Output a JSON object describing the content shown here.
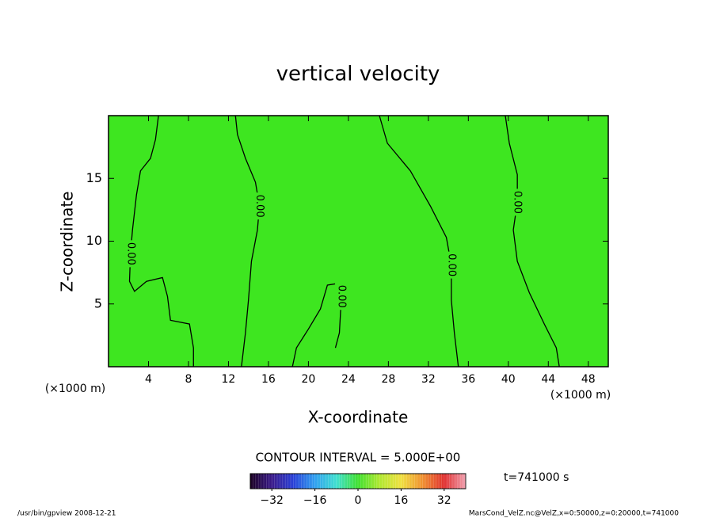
{
  "chart_data": {
    "type": "contour",
    "title": "vertical velocity",
    "x_label": "X-coordinate",
    "y_label": "Z-coordinate",
    "x_unit_label": "(×1000 m)",
    "xlim": [
      0,
      50
    ],
    "xticks": [
      4,
      8,
      12,
      16,
      20,
      24,
      28,
      32,
      36,
      40,
      44,
      48
    ],
    "ylim": [
      0,
      20
    ],
    "yticks": [
      5,
      10,
      15
    ],
    "field_color": "#3ee620",
    "contour_color": "#000000",
    "contours": [
      {
        "level": 0,
        "label": "0.00",
        "x": [
          5.0,
          4.7,
          4.2,
          3.2,
          2.8,
          2.4,
          2.2,
          2.1,
          2.6,
          3.8,
          5.4,
          5.9,
          6.2,
          8.1,
          8.5,
          8.5
        ],
        "y": [
          20.0,
          18.1,
          16.6,
          15.6,
          13.7,
          10.9,
          9.0,
          6.8,
          6.0,
          6.8,
          7.1,
          5.6,
          3.7,
          3.4,
          1.5,
          0
        ]
      },
      {
        "level": 0,
        "label": "0.00",
        "x": [
          12.7,
          12.9,
          13.7,
          14.7,
          15.1,
          14.9,
          14.3,
          14.0,
          13.7,
          13.3
        ],
        "y": [
          20.0,
          18.5,
          16.6,
          14.7,
          12.8,
          10.9,
          8.4,
          5.3,
          2.7,
          0
        ]
      },
      {
        "level": 0,
        "label": "0.00",
        "x": [
          27.1,
          27.9,
          30.2,
          32.2,
          33.8,
          34.3,
          34.3,
          34.6,
          35.0
        ],
        "y": [
          20.0,
          17.8,
          15.6,
          12.8,
          10.3,
          8.1,
          5.3,
          2.7,
          0
        ]
      },
      {
        "level": 0,
        "label": "0.00",
        "x": [
          39.7,
          40.1,
          40.9,
          40.9,
          40.5,
          40.9,
          42.1,
          43.6,
          44.8,
          45.1
        ],
        "y": [
          20.0,
          17.8,
          15.3,
          13.1,
          10.9,
          8.4,
          5.9,
          3.4,
          1.5,
          0
        ]
      },
      {
        "level": 0,
        "label": "0.00",
        "x": [
          18.4,
          18.8,
          20.0,
          21.2,
          21.9,
          22.7,
          23.3,
          23.1,
          22.7
        ],
        "y": [
          0,
          1.5,
          3.0,
          4.6,
          6.5,
          6.6,
          5.6,
          2.7,
          1.5
        ]
      }
    ],
    "contour_interval_text": "CONTOUR INTERVAL = 5.000E+00",
    "time_text": "t=741000 s",
    "colorbar": {
      "lim": [
        -40,
        40
      ],
      "ticks": [
        {
          "value": -32,
          "label": "−32"
        },
        {
          "value": -16,
          "label": "−16"
        },
        0,
        16,
        32
      ],
      "colors": [
        "#1a0022",
        "#3a1a8a",
        "#2a40d8",
        "#30a0f0",
        "#40e0d0",
        "#40e030",
        "#b0e830",
        "#f0e040",
        "#f09030",
        "#e03030",
        "#f0a0b0"
      ]
    },
    "footer_left": "/usr/bin/gpview   2008-12-21",
    "footer_right": "MarsCond_VelZ.nc@VelZ,x=0:50000,z=0:20000,t=741000"
  }
}
